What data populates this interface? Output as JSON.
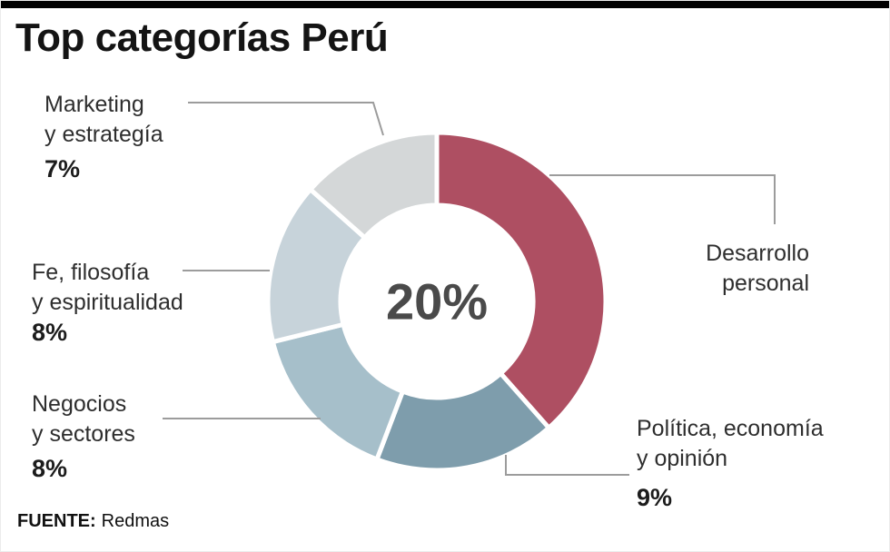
{
  "header": {
    "title": "Top categorías Perú"
  },
  "chart_data": {
    "type": "pie",
    "subtype": "donut",
    "title": "Top categorías Perú",
    "center_label": "20%",
    "legend_position": "callout-labels",
    "series": [
      {
        "name": "Desarrollo personal",
        "label": "Desarrollo\npersonal",
        "value": 20,
        "value_label": "20%",
        "color": "#ae4f62"
      },
      {
        "name": "Política, economía y opinión",
        "label": "Política, economía\ny opinión",
        "value": 9,
        "value_label": "9%",
        "color": "#7e9dac"
      },
      {
        "name": "Negocios y sectores",
        "label": "Negocios\ny sectores",
        "value": 8,
        "value_label": "8%",
        "color": "#a6bfca"
      },
      {
        "name": "Fe, filosofía y espiritualidad",
        "label": "Fe, filosofía\ny espiritualidad",
        "value": 8,
        "value_label": "8%",
        "color": "#c7d3da"
      },
      {
        "name": "Marketing y estrategía",
        "label": "Marketing\ny estrategía",
        "value": 7,
        "value_label": "7%",
        "color": "#d4d7d8"
      }
    ]
  },
  "footer": {
    "source_label": "FUENTE:",
    "source_value": "Redmas"
  }
}
